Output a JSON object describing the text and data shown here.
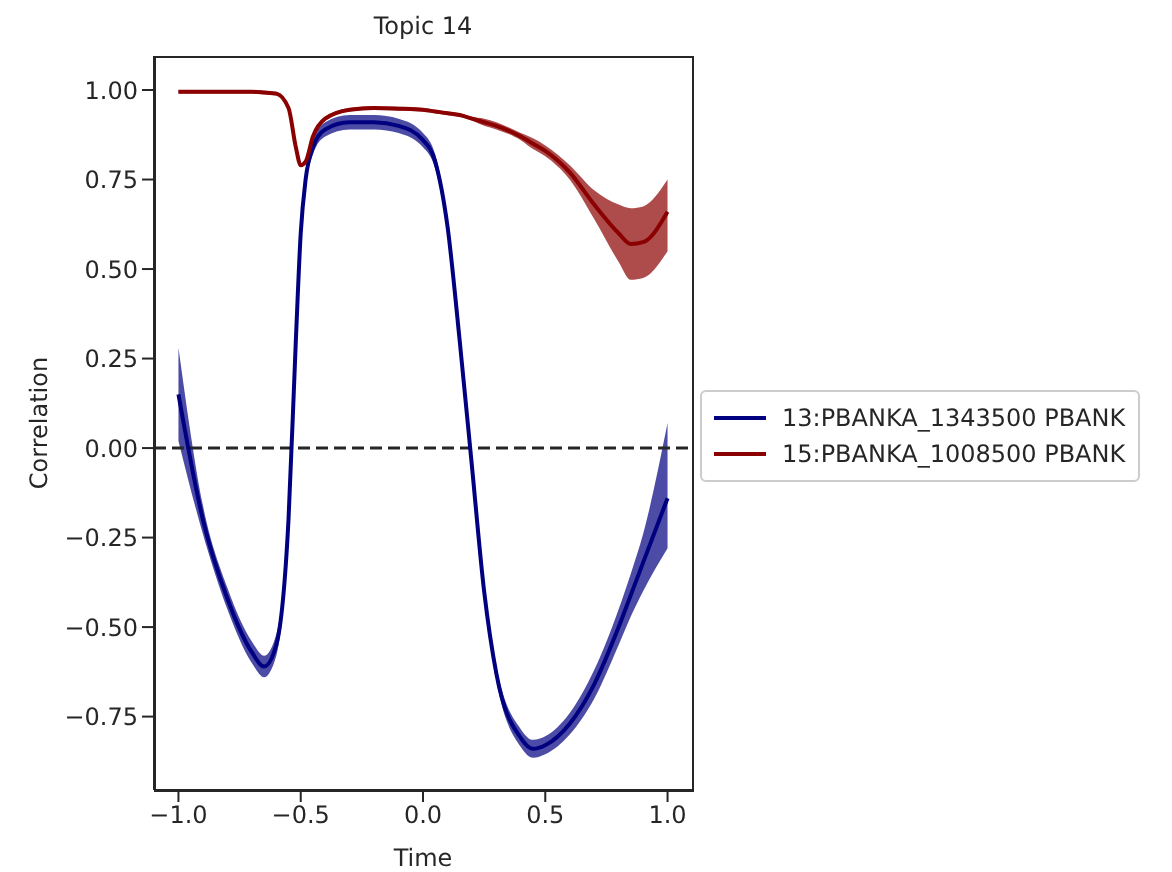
{
  "chart_data": {
    "type": "line",
    "title": "Topic 14",
    "xlabel": "Time",
    "ylabel": "Correlation",
    "x": [
      -1,
      -0.9,
      -0.8,
      -0.7,
      -0.65,
      -0.6,
      -0.55,
      -0.52,
      -0.5,
      -0.48,
      -0.45,
      -0.4,
      -0.3,
      -0.2,
      -0.1,
      0,
      0.05,
      0.1,
      0.15,
      0.2,
      0.25,
      0.3,
      0.4,
      0.45,
      0.5,
      0.6,
      0.7,
      0.8,
      0.85,
      0.9,
      1
    ],
    "series": [
      {
        "name": "13:PBANKA_1343500 PBANK",
        "color": "#000080",
        "values": [
          0.15,
          -0.2,
          -0.42,
          -0.57,
          -0.61,
          -0.55,
          -0.2,
          0.3,
          0.6,
          0.75,
          0.84,
          0.89,
          0.91,
          0.91,
          0.9,
          0.86,
          0.8,
          0.62,
          0.3,
          -0.05,
          -0.4,
          -0.63,
          -0.81,
          -0.84,
          -0.83,
          -0.77,
          -0.66,
          -0.5,
          -0.41,
          -0.32,
          -0.14
        ],
        "lower": [
          0.02,
          -0.24,
          -0.45,
          -0.6,
          -0.64,
          -0.58,
          -0.22,
          0.28,
          0.58,
          0.73,
          0.82,
          0.87,
          0.89,
          0.89,
          0.88,
          0.84,
          0.78,
          0.6,
          0.28,
          -0.07,
          -0.42,
          -0.65,
          -0.835,
          -0.865,
          -0.855,
          -0.8,
          -0.7,
          -0.55,
          -0.47,
          -0.4,
          -0.28
        ],
        "upper": [
          0.28,
          -0.16,
          -0.39,
          -0.54,
          -0.58,
          -0.52,
          -0.18,
          0.32,
          0.62,
          0.77,
          0.86,
          0.91,
          0.93,
          0.93,
          0.92,
          0.88,
          0.82,
          0.64,
          0.32,
          -0.03,
          -0.38,
          -0.61,
          -0.785,
          -0.815,
          -0.805,
          -0.74,
          -0.62,
          -0.45,
          -0.35,
          -0.24,
          0.07
        ]
      },
      {
        "name": "15:PBANKA_1008500 PBANK",
        "color": "#8b0000",
        "values": [
          0.995,
          0.995,
          0.995,
          0.995,
          0.993,
          0.99,
          0.95,
          0.84,
          0.79,
          0.8,
          0.87,
          0.92,
          0.945,
          0.95,
          0.948,
          0.945,
          0.94,
          0.935,
          0.93,
          0.92,
          0.91,
          0.9,
          0.87,
          0.85,
          0.83,
          0.77,
          0.68,
          0.6,
          0.57,
          0.575,
          0.66
        ],
        "lower": [
          0.99,
          0.99,
          0.99,
          0.99,
          0.988,
          0.985,
          0.945,
          0.835,
          0.785,
          0.795,
          0.865,
          0.915,
          0.94,
          0.945,
          0.943,
          0.94,
          0.935,
          0.93,
          0.925,
          0.915,
          0.9,
          0.89,
          0.86,
          0.835,
          0.815,
          0.75,
          0.64,
          0.52,
          0.47,
          0.475,
          0.55
        ],
        "upper": [
          1,
          1,
          1,
          1,
          0.998,
          0.995,
          0.955,
          0.845,
          0.795,
          0.805,
          0.875,
          0.925,
          0.95,
          0.955,
          0.953,
          0.95,
          0.945,
          0.94,
          0.935,
          0.925,
          0.92,
          0.91,
          0.88,
          0.865,
          0.845,
          0.79,
          0.72,
          0.68,
          0.67,
          0.675,
          0.75
        ]
      }
    ],
    "xlim": [
      -1.1,
      1.1
    ],
    "xticks": [
      {
        "value": -1,
        "label": "−1.0"
      },
      {
        "value": -0.5,
        "label": "−0.5"
      },
      {
        "value": 0,
        "label": "0.0"
      },
      {
        "value": 0.5,
        "label": "0.5"
      },
      {
        "value": 1,
        "label": "1.0"
      }
    ],
    "ylim": [
      -0.955,
      1.095
    ],
    "yticks": [
      {
        "value": -0.75,
        "label": "−0.75"
      },
      {
        "value": -0.5,
        "label": "−0.50"
      },
      {
        "value": -0.25,
        "label": "−0.25"
      },
      {
        "value": 0,
        "label": "0.00"
      },
      {
        "value": 0.25,
        "label": "0.25"
      },
      {
        "value": 0.5,
        "label": "0.50"
      },
      {
        "value": 0.75,
        "label": "0.75"
      },
      {
        "value": 1,
        "label": "1.00"
      }
    ],
    "ref_lines": [
      {
        "axis": "y",
        "value": 0,
        "color": "#262626",
        "line_style": "dashed"
      }
    ],
    "grid": false,
    "legend": "right",
    "marker": "none",
    "line_style": "solid"
  }
}
